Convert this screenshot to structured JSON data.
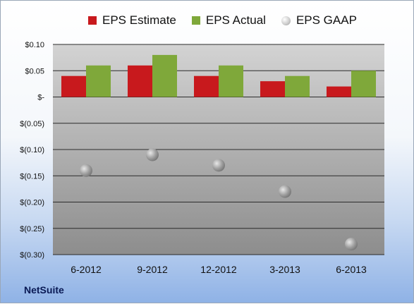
{
  "brand": "NetSuite",
  "colors": {
    "estimate": "#c8191d",
    "actual": "#7fa83a",
    "gaap": "#a9a9a9"
  },
  "chart_data": {
    "type": "bar",
    "categories": [
      "6-2012",
      "9-2012",
      "12-2012",
      "3-2013",
      "6-2013"
    ],
    "series": [
      {
        "name": "EPS Estimate",
        "type": "bar",
        "values": [
          0.04,
          0.06,
          0.04,
          0.03,
          0.02
        ]
      },
      {
        "name": "EPS Actual",
        "type": "bar",
        "values": [
          0.06,
          0.08,
          0.06,
          0.04,
          0.05
        ]
      },
      {
        "name": "EPS GAAP",
        "type": "scatter",
        "values": [
          -0.14,
          -0.11,
          -0.13,
          -0.18,
          -0.28
        ]
      }
    ],
    "ylim": [
      -0.3,
      0.1
    ],
    "yticks": [
      0.1,
      0.05,
      0.0,
      -0.05,
      -0.1,
      -0.15,
      -0.2,
      -0.25,
      -0.3
    ],
    "ytick_labels": [
      "$0.10",
      "$0.05",
      "$-",
      "$(0.05)",
      "$(0.10)",
      "$(0.15)",
      "$(0.20)",
      "$(0.25)",
      "$(0.30)"
    ],
    "grid": true,
    "legend": "top"
  }
}
